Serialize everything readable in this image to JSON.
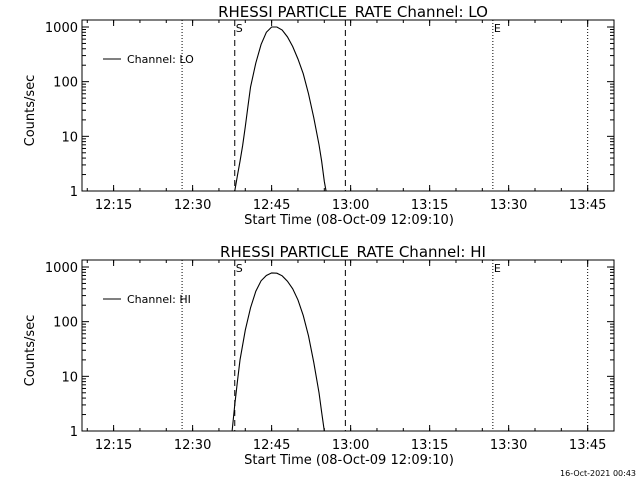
{
  "footer_timestamp": "16-Oct-2021 00:43",
  "chart_data": [
    {
      "type": "line",
      "title": "RHESSI PARTICLE_RATE Channel: LO",
      "xlabel": "Start Time (08-Oct-09 12:09:10)",
      "ylabel": "Counts/sec",
      "yscale": "log",
      "xlim": [
        "12:09",
        "13:50"
      ],
      "ylim": [
        1,
        1000
      ],
      "xticks": [
        "12:15",
        "12:30",
        "12:45",
        "13:00",
        "13:15",
        "13:30",
        "13:45"
      ],
      "yticks": [
        "1",
        "10",
        "100",
        "1000"
      ],
      "legend": {
        "label": "Channel: LO",
        "position": "top-left"
      },
      "dotted_lines": [
        "12:28",
        "13:27",
        "13:45"
      ],
      "dashed_lines": [
        "12:38",
        "12:59"
      ],
      "markers": [
        {
          "label": "S",
          "x": "12:38"
        },
        {
          "label": "E",
          "x": "13:27"
        }
      ],
      "series": [
        {
          "name": "Channel: LO",
          "points": [
            [
              "12:38:00",
              1.0
            ],
            [
              "12:38:30",
              1.9
            ],
            [
              "12:39:00",
              3.5
            ],
            [
              "12:39:30",
              6.8
            ],
            [
              "12:40:00",
              15
            ],
            [
              "12:40:30",
              35
            ],
            [
              "12:41:00",
              80
            ],
            [
              "12:42:00",
              220
            ],
            [
              "12:43:00",
              480
            ],
            [
              "12:44:00",
              800
            ],
            [
              "12:45:00",
              1000
            ],
            [
              "12:46:00",
              1000
            ],
            [
              "12:47:00",
              880
            ],
            [
              "12:48:00",
              660
            ],
            [
              "12:49:00",
              440
            ],
            [
              "12:50:00",
              260
            ],
            [
              "12:51:00",
              140
            ],
            [
              "12:52:00",
              60
            ],
            [
              "12:53:00",
              22
            ],
            [
              "12:54:00",
              7
            ],
            [
              "12:54:30",
              3.5
            ],
            [
              "12:55:00",
              1.5
            ],
            [
              "12:55:20",
              1.0
            ]
          ]
        }
      ]
    },
    {
      "type": "line",
      "title": "RHESSI PARTICLE_RATE Channel: HI",
      "xlabel": "Start Time (08-Oct-09 12:09:10)",
      "ylabel": "Counts/sec",
      "yscale": "log",
      "xlim": [
        "12:09",
        "13:50"
      ],
      "ylim": [
        1,
        1000
      ],
      "xticks": [
        "12:15",
        "12:30",
        "12:45",
        "13:00",
        "13:15",
        "13:30",
        "13:45"
      ],
      "yticks": [
        "1",
        "10",
        "100",
        "1000"
      ],
      "legend": {
        "label": "Channel: HI",
        "position": "top-left"
      },
      "dotted_lines": [
        "12:28",
        "13:27",
        "13:45"
      ],
      "dashed_lines": [
        "12:38",
        "12:59"
      ],
      "markers": [
        {
          "label": "S",
          "x": "12:38"
        },
        {
          "label": "E",
          "x": "13:27"
        }
      ],
      "series": [
        {
          "name": "Channel: HI",
          "points": [
            [
              "12:37:30",
              1.0
            ],
            [
              "12:38:00",
              3.0
            ],
            [
              "12:38:30",
              8
            ],
            [
              "12:39:00",
              20
            ],
            [
              "12:40:00",
              70
            ],
            [
              "12:41:00",
              180
            ],
            [
              "12:42:00",
              360
            ],
            [
              "12:43:00",
              560
            ],
            [
              "12:44:00",
              700
            ],
            [
              "12:45:00",
              780
            ],
            [
              "12:46:00",
              770
            ],
            [
              "12:47:00",
              690
            ],
            [
              "12:48:00",
              550
            ],
            [
              "12:49:00",
              400
            ],
            [
              "12:50:00",
              250
            ],
            [
              "12:51:00",
              130
            ],
            [
              "12:52:00",
              55
            ],
            [
              "12:53:00",
              18
            ],
            [
              "12:54:00",
              5
            ],
            [
              "12:54:30",
              2.2
            ],
            [
              "12:55:00",
              1.0
            ]
          ]
        }
      ]
    }
  ]
}
